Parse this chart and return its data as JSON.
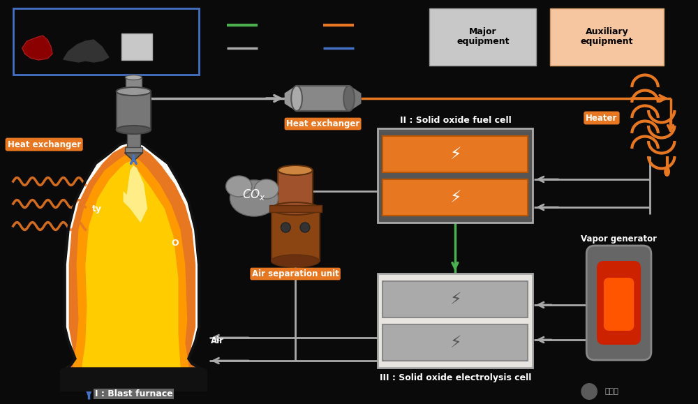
{
  "bg_color": "#0a0a0a",
  "orange": "#e87722",
  "gray": "#aaaaaa",
  "blue": "#4472c4",
  "green": "#4caf50",
  "white": "#ffffff",
  "black": "#000000",
  "light_gray": "#c8c8c8",
  "peach": "#f5c6a0",
  "components": {
    "blast_furnace_label": "I : Blast furnace",
    "heat_exchanger1_label": "Heat exchanger",
    "heat_exchanger2_label": "Heat exchanger",
    "sofc_label": "II : Solid oxide fuel cell",
    "soec_label": "III : Solid oxide electrolysis cell",
    "air_sep_label": "Air separation unit",
    "vapor_gen_label": "Vapor generator",
    "heater_label": "Heater",
    "cox_label": "COₓ",
    "major_eq": "Major\nequipment",
    "aux_eq": "Auxiliary\nequipment",
    "ty_label": "ty",
    "o_label": "O",
    "air_label": "Air"
  }
}
